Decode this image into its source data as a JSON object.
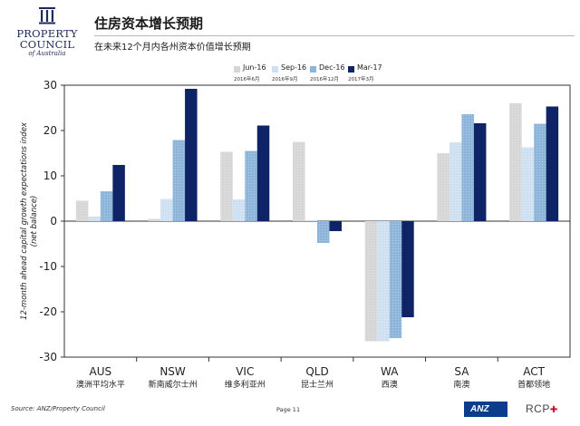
{
  "header": {
    "logo_line1": "PROPERTY",
    "logo_line2": "COUNCIL",
    "logo_line3": "of Australia",
    "title": "住房资本增长预期",
    "subtitle": "在未来12个月内各州资本价值增长预期"
  },
  "footer": {
    "source": "Source: ANZ/Property Council",
    "page": "Page 11",
    "sponsor1": "ANZ",
    "sponsor2": "RCP"
  },
  "colors": {
    "Jun-16": "#d6d6d6",
    "Sep-16": "#cfe0f3",
    "Dec-16": "#8cb5d9",
    "Mar-17": "#0e2466"
  },
  "chart_data": {
    "type": "bar",
    "ylabel": "12-month ahead capital growth expectations index (net balance)",
    "ylim": [
      -30,
      30
    ],
    "yticks": [
      -30,
      -20,
      -10,
      0,
      10,
      20,
      30
    ],
    "categories": [
      "AUS",
      "NSW",
      "VIC",
      "QLD",
      "WA",
      "SA",
      "ACT"
    ],
    "categories_cn": [
      "澳洲平均水平",
      "新南威尔士州",
      "维多利亚州",
      "昆士兰州",
      "西澳",
      "南澳",
      "首都领地"
    ],
    "series": [
      {
        "name": "Jun-16",
        "name_cn": "2016年6月",
        "values": [
          4.5,
          0.5,
          15.3,
          17.5,
          -26.5,
          15.0,
          26.0
        ]
      },
      {
        "name": "Sep-16",
        "name_cn": "2016年9月",
        "values": [
          1.0,
          4.9,
          4.8,
          0.2,
          -26.5,
          17.4,
          16.3
        ]
      },
      {
        "name": "Dec-16",
        "name_cn": "2016年12月",
        "values": [
          6.6,
          17.9,
          15.5,
          -4.8,
          -25.8,
          23.6,
          21.5
        ]
      },
      {
        "name": "Mar-17",
        "name_cn": "2017年3月",
        "values": [
          12.4,
          29.2,
          21.1,
          -2.2,
          -21.2,
          21.6,
          25.3
        ]
      }
    ]
  }
}
